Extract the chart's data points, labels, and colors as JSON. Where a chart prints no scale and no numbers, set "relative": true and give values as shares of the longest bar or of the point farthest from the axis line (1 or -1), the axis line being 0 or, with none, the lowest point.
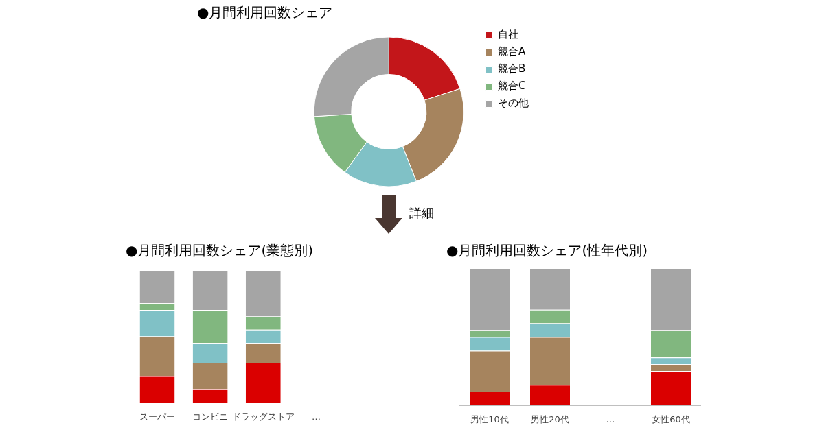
{
  "chart_data": [
    {
      "type": "donut",
      "title": "●月間利用回数シェア",
      "categories": [
        "自社",
        "競合A",
        "競合B",
        "競合C",
        "その他"
      ],
      "values": [
        20,
        24,
        16,
        14,
        26
      ],
      "colors": [
        "#c3161a",
        "#a6845e",
        "#80c1c6",
        "#81b77f",
        "#a5a5a5"
      ],
      "legend": "top right",
      "annotations": [
        "詳細"
      ]
    },
    {
      "type": "bar",
      "title": "●月間利用回数シェア(業態別)",
      "categories": [
        "スーパー",
        "コンビニ",
        "ドラッグストア",
        "…"
      ],
      "stacked": true,
      "relative": true,
      "series": [
        {
          "color": "#da0000",
          "values": [
            0.2,
            0.1,
            0.3,
            null
          ]
        },
        {
          "color": "#a6845e",
          "values": [
            0.3,
            0.2,
            0.15,
            null
          ]
        },
        {
          "color": "#80c1c6",
          "values": [
            0.2,
            0.15,
            0.1,
            null
          ]
        },
        {
          "color": "#81b77f",
          "values": [
            0.05,
            0.25,
            0.1,
            null
          ]
        },
        {
          "color": "#a5a5a5",
          "values": [
            0.25,
            0.3,
            0.35,
            null
          ]
        }
      ]
    },
    {
      "type": "bar",
      "title": "●月間利用回数シェア(性年代別)",
      "categories": [
        "男性10代",
        "男性20代",
        "…",
        "女性60代"
      ],
      "stacked": true,
      "relative": true,
      "series": [
        {
          "color": "#da0000",
          "values": [
            0.1,
            0.15,
            null,
            0.25
          ]
        },
        {
          "color": "#a6845e",
          "values": [
            0.3,
            0.35,
            null,
            0.05
          ]
        },
        {
          "color": "#80c1c6",
          "values": [
            0.1,
            0.1,
            null,
            0.05
          ]
        },
        {
          "color": "#81b77f",
          "values": [
            0.05,
            0.1,
            null,
            0.2
          ]
        },
        {
          "color": "#a5a5a5",
          "values": [
            0.45,
            0.3,
            null,
            0.45
          ]
        }
      ]
    }
  ]
}
